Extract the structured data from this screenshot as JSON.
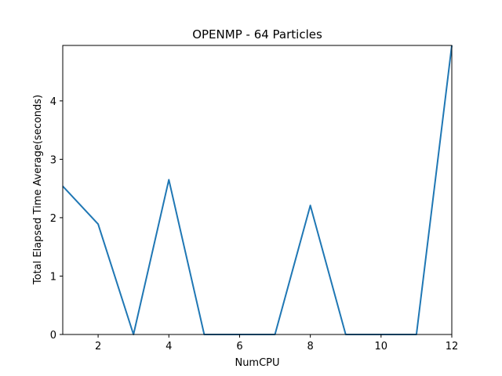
{
  "chart_data": {
    "type": "line",
    "title": "OPENMP - 64 Particles",
    "xlabel": "NumCPU",
    "ylabel": "Total Elapsed Time Average(seconds)",
    "xlim": [
      1,
      12
    ],
    "ylim": [
      0,
      4.95
    ],
    "grid": false,
    "x": [
      1,
      2,
      3,
      4,
      5,
      6,
      7,
      8,
      9,
      10,
      11,
      12
    ],
    "series": [
      {
        "values": [
          2.54,
          1.89,
          0.0,
          2.65,
          0.0,
          0.0,
          0.0,
          2.21,
          0.0,
          0.0,
          0.0,
          4.95
        ]
      }
    ],
    "xticks": [
      2,
      4,
      6,
      8,
      10,
      12
    ],
    "xtick_labels": [
      "2",
      "4",
      "6",
      "8",
      "10",
      "12"
    ],
    "yticks": [
      0,
      1,
      2,
      3,
      4
    ],
    "ytick_labels": [
      "0",
      "1",
      "2",
      "3",
      "4"
    ],
    "line_color": "#1f77b4"
  }
}
